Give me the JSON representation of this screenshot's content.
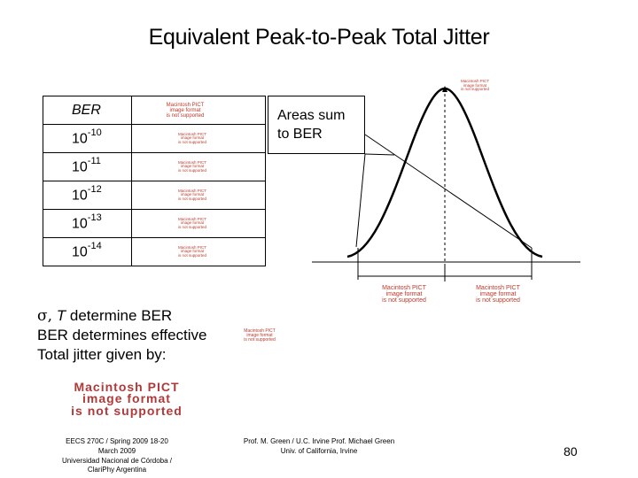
{
  "title": "Equivalent Peak-to-Peak Total Jitter",
  "pict_placeholder": {
    "line1": "Macintosh PICT",
    "line2": "image format",
    "line3": "is not supported"
  },
  "ber_table": {
    "header": "BER",
    "rows": [
      {
        "base": "10",
        "exp": "-10"
      },
      {
        "base": "10",
        "exp": "-11"
      },
      {
        "base": "10",
        "exp": "-12"
      },
      {
        "base": "10",
        "exp": "-13"
      },
      {
        "base": "10",
        "exp": "-14"
      }
    ]
  },
  "callout": {
    "line1": "Areas sum",
    "line2": "to BER"
  },
  "text": {
    "sigma_symbol": "σ,",
    "t_symbol": "T",
    "line1_rest": "determine BER",
    "line2": "BER determines effective",
    "line3": "Total jitter given by:"
  },
  "footer": {
    "left_line1": "EECS 270C / Spring 2009 18-20",
    "left_line2": "March 2009",
    "left_line3": "Universidad Nacional de Córdoba /",
    "left_line4": "ClariPhy Argentina",
    "middle_line1": "Prof. M. Green / U.C. Irvine Prof. Michael Green",
    "middle_line2": "Univ. of California, Irvine",
    "page_number": "80"
  }
}
